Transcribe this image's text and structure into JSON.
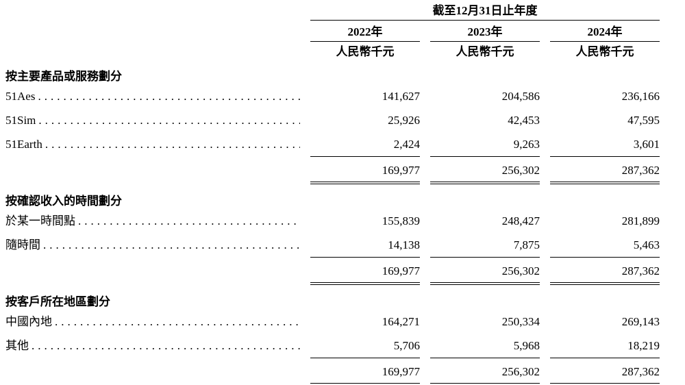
{
  "table": {
    "period_header": "截至12月31日止年度",
    "columns": [
      {
        "year": "2022年",
        "unit": "人民幣千元"
      },
      {
        "year": "2023年",
        "unit": "人民幣千元"
      },
      {
        "year": "2024年",
        "unit": "人民幣千元"
      }
    ],
    "sections": [
      {
        "title": "按主要產品或服務劃分",
        "rows": [
          {
            "label": "51Aes",
            "values": [
              "141,627",
              "204,586",
              "236,166"
            ]
          },
          {
            "label": "51Sim",
            "values": [
              "25,926",
              "42,453",
              "47,595"
            ]
          },
          {
            "label": "51Earth",
            "values": [
              "2,424",
              "9,263",
              "3,601"
            ]
          }
        ],
        "total": [
          "169,977",
          "256,302",
          "287,362"
        ]
      },
      {
        "title": "按確認收入的時間劃分",
        "rows": [
          {
            "label": "於某一時間點",
            "values": [
              "155,839",
              "248,427",
              "281,899"
            ]
          },
          {
            "label": "隨時間",
            "values": [
              "14,138",
              "7,875",
              "5,463"
            ]
          }
        ],
        "total": [
          "169,977",
          "256,302",
          "287,362"
        ]
      },
      {
        "title": "按客戶所在地區劃分",
        "rows": [
          {
            "label": "中國內地",
            "values": [
              "164,271",
              "250,334",
              "269,143"
            ]
          },
          {
            "label": "其他",
            "values": [
              "5,706",
              "5,968",
              "18,219"
            ]
          }
        ],
        "total": [
          "169,977",
          "256,302",
          "287,362"
        ]
      }
    ]
  }
}
